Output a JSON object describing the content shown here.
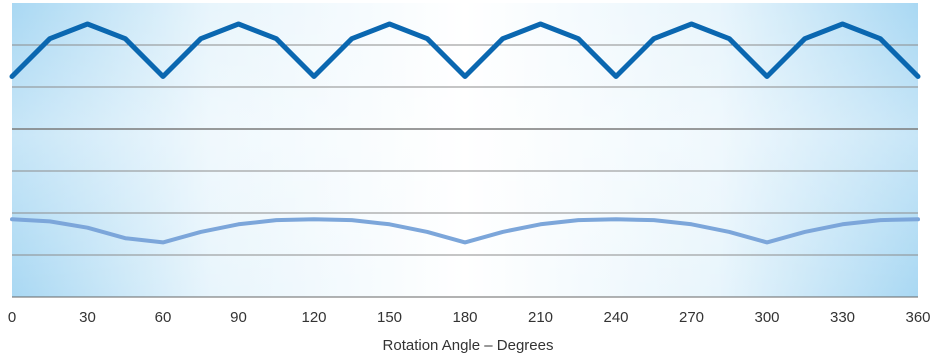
{
  "chart_data": {
    "type": "line",
    "title": "",
    "xlabel": "Rotation Angle – Degrees",
    "ylabel": "",
    "xlim": [
      0,
      360
    ],
    "ylim": [
      0,
      7
    ],
    "x_ticks": [
      0,
      30,
      60,
      90,
      120,
      150,
      180,
      210,
      240,
      270,
      300,
      330,
      360
    ],
    "grid": true,
    "legend": "none",
    "series": [
      {
        "color": "#0a67b0",
        "x": [
          0,
          15,
          30,
          45,
          60,
          75,
          90,
          105,
          120,
          135,
          150,
          165,
          180,
          195,
          210,
          225,
          240,
          255,
          270,
          285,
          300,
          315,
          330,
          345,
          360
        ],
        "y": [
          5.25,
          6.15,
          6.5,
          6.15,
          5.25,
          6.15,
          6.5,
          6.15,
          5.25,
          6.15,
          6.5,
          6.15,
          5.25,
          6.15,
          6.5,
          6.15,
          5.25,
          6.15,
          6.5,
          6.15,
          5.25,
          6.15,
          6.5,
          6.15,
          5.25
        ]
      },
      {
        "color": "#7ca6da",
        "x": [
          0,
          15,
          30,
          45,
          60,
          75,
          90,
          105,
          120,
          135,
          150,
          165,
          180,
          195,
          210,
          225,
          240,
          255,
          270,
          285,
          300,
          315,
          330,
          345,
          360
        ],
        "y": [
          1.85,
          1.8,
          1.65,
          1.4,
          1.3,
          1.55,
          1.73,
          1.83,
          1.85,
          1.83,
          1.73,
          1.55,
          1.3,
          1.55,
          1.73,
          1.83,
          1.85,
          1.83,
          1.73,
          1.55,
          1.3,
          1.55,
          1.73,
          1.83,
          1.85
        ]
      }
    ]
  }
}
